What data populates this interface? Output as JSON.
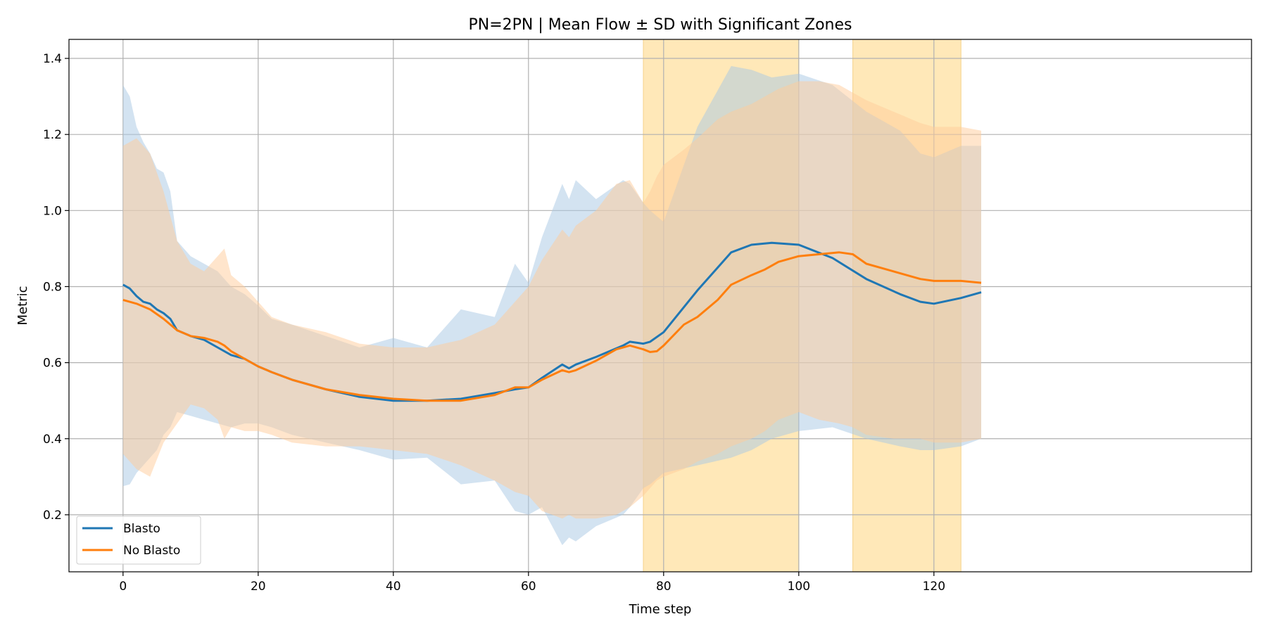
{
  "chart_data": {
    "type": "line",
    "title": "PN=2PN | Mean Flow ± SD with Significant Zones",
    "xlabel": "Time step",
    "ylabel": "Metric",
    "xlim": [
      -8,
      167
    ],
    "ylim": [
      0.05,
      1.45
    ],
    "xticks": [
      0,
      20,
      40,
      60,
      80,
      100,
      120
    ],
    "yticks": [
      0.2,
      0.4,
      0.6,
      0.8,
      1.0,
      1.2,
      1.4
    ],
    "grid": true,
    "legend_position": "lower-left",
    "significant_zones": [
      [
        77,
        100
      ],
      [
        108,
        124
      ]
    ],
    "zone_color": "#ffe8b8",
    "series": [
      {
        "name": "Blasto",
        "color": "#1f77b4",
        "band_color": "#a7c8e3",
        "x": [
          0,
          1,
          2,
          3,
          4,
          5,
          6,
          7,
          8,
          10,
          12,
          14,
          16,
          18,
          20,
          22,
          25,
          30,
          35,
          40,
          45,
          50,
          55,
          58,
          60,
          62,
          65,
          66,
          67,
          70,
          74,
          75,
          77,
          78,
          80,
          85,
          90,
          93,
          96,
          100,
          105,
          110,
          115,
          118,
          120,
          124,
          127
        ],
        "mean": [
          0.805,
          0.795,
          0.775,
          0.76,
          0.755,
          0.74,
          0.73,
          0.715,
          0.685,
          0.67,
          0.66,
          0.64,
          0.62,
          0.61,
          0.59,
          0.575,
          0.555,
          0.53,
          0.51,
          0.5,
          0.5,
          0.505,
          0.52,
          0.53,
          0.535,
          0.56,
          0.595,
          0.585,
          0.595,
          0.615,
          0.645,
          0.655,
          0.65,
          0.655,
          0.68,
          0.79,
          0.89,
          0.91,
          0.915,
          0.91,
          0.875,
          0.82,
          0.78,
          0.76,
          0.755,
          0.77,
          0.785
        ],
        "upper": [
          1.33,
          1.3,
          1.22,
          1.18,
          1.15,
          1.11,
          1.1,
          1.05,
          0.92,
          0.88,
          0.86,
          0.84,
          0.8,
          0.78,
          0.75,
          0.715,
          0.7,
          0.67,
          0.64,
          0.665,
          0.64,
          0.74,
          0.72,
          0.86,
          0.81,
          0.93,
          1.07,
          1.03,
          1.08,
          1.03,
          1.08,
          1.07,
          1.02,
          1.0,
          0.97,
          1.22,
          1.38,
          1.37,
          1.35,
          1.36,
          1.33,
          1.26,
          1.21,
          1.15,
          1.14,
          1.17,
          1.17
        ],
        "lower": [
          0.275,
          0.28,
          0.31,
          0.33,
          0.35,
          0.37,
          0.41,
          0.43,
          0.47,
          0.46,
          0.45,
          0.44,
          0.43,
          0.44,
          0.44,
          0.43,
          0.41,
          0.39,
          0.37,
          0.345,
          0.35,
          0.28,
          0.29,
          0.21,
          0.2,
          0.22,
          0.12,
          0.14,
          0.13,
          0.17,
          0.2,
          0.22,
          0.27,
          0.28,
          0.31,
          0.33,
          0.35,
          0.37,
          0.4,
          0.42,
          0.43,
          0.4,
          0.38,
          0.37,
          0.37,
          0.38,
          0.4
        ]
      },
      {
        "name": "No Blasto",
        "color": "#ff7f0e",
        "band_color": "#ffcc99",
        "x": [
          0,
          2,
          4,
          6,
          8,
          10,
          12,
          14,
          15,
          16,
          18,
          20,
          22,
          25,
          30,
          35,
          40,
          45,
          50,
          55,
          58,
          60,
          62,
          65,
          66,
          67,
          70,
          73,
          75,
          77,
          78,
          79,
          80,
          83,
          85,
          88,
          90,
          93,
          95,
          97,
          100,
          103,
          106,
          108,
          110,
          114,
          118,
          120,
          124,
          127
        ],
        "mean": [
          0.765,
          0.755,
          0.74,
          0.715,
          0.685,
          0.67,
          0.665,
          0.655,
          0.645,
          0.63,
          0.61,
          0.59,
          0.575,
          0.555,
          0.53,
          0.515,
          0.505,
          0.5,
          0.5,
          0.515,
          0.535,
          0.535,
          0.555,
          0.58,
          0.575,
          0.58,
          0.605,
          0.635,
          0.645,
          0.635,
          0.628,
          0.63,
          0.645,
          0.7,
          0.72,
          0.765,
          0.805,
          0.83,
          0.845,
          0.865,
          0.88,
          0.885,
          0.89,
          0.885,
          0.86,
          0.84,
          0.82,
          0.815,
          0.815,
          0.81
        ],
        "upper": [
          1.17,
          1.19,
          1.15,
          1.05,
          0.92,
          0.86,
          0.84,
          0.88,
          0.9,
          0.83,
          0.8,
          0.76,
          0.72,
          0.7,
          0.68,
          0.65,
          0.64,
          0.64,
          0.66,
          0.7,
          0.76,
          0.8,
          0.87,
          0.95,
          0.93,
          0.96,
          1.0,
          1.07,
          1.08,
          1.02,
          1.05,
          1.09,
          1.12,
          1.16,
          1.19,
          1.24,
          1.26,
          1.28,
          1.3,
          1.32,
          1.34,
          1.34,
          1.33,
          1.31,
          1.29,
          1.26,
          1.23,
          1.22,
          1.22,
          1.21
        ],
        "lower": [
          0.36,
          0.32,
          0.3,
          0.39,
          0.44,
          0.49,
          0.48,
          0.45,
          0.4,
          0.43,
          0.42,
          0.42,
          0.41,
          0.39,
          0.38,
          0.38,
          0.37,
          0.36,
          0.33,
          0.29,
          0.26,
          0.25,
          0.21,
          0.19,
          0.2,
          0.19,
          0.19,
          0.2,
          0.22,
          0.25,
          0.27,
          0.29,
          0.3,
          0.32,
          0.34,
          0.36,
          0.38,
          0.4,
          0.42,
          0.45,
          0.47,
          0.45,
          0.44,
          0.43,
          0.41,
          0.4,
          0.4,
          0.39,
          0.39,
          0.4
        ]
      }
    ]
  }
}
